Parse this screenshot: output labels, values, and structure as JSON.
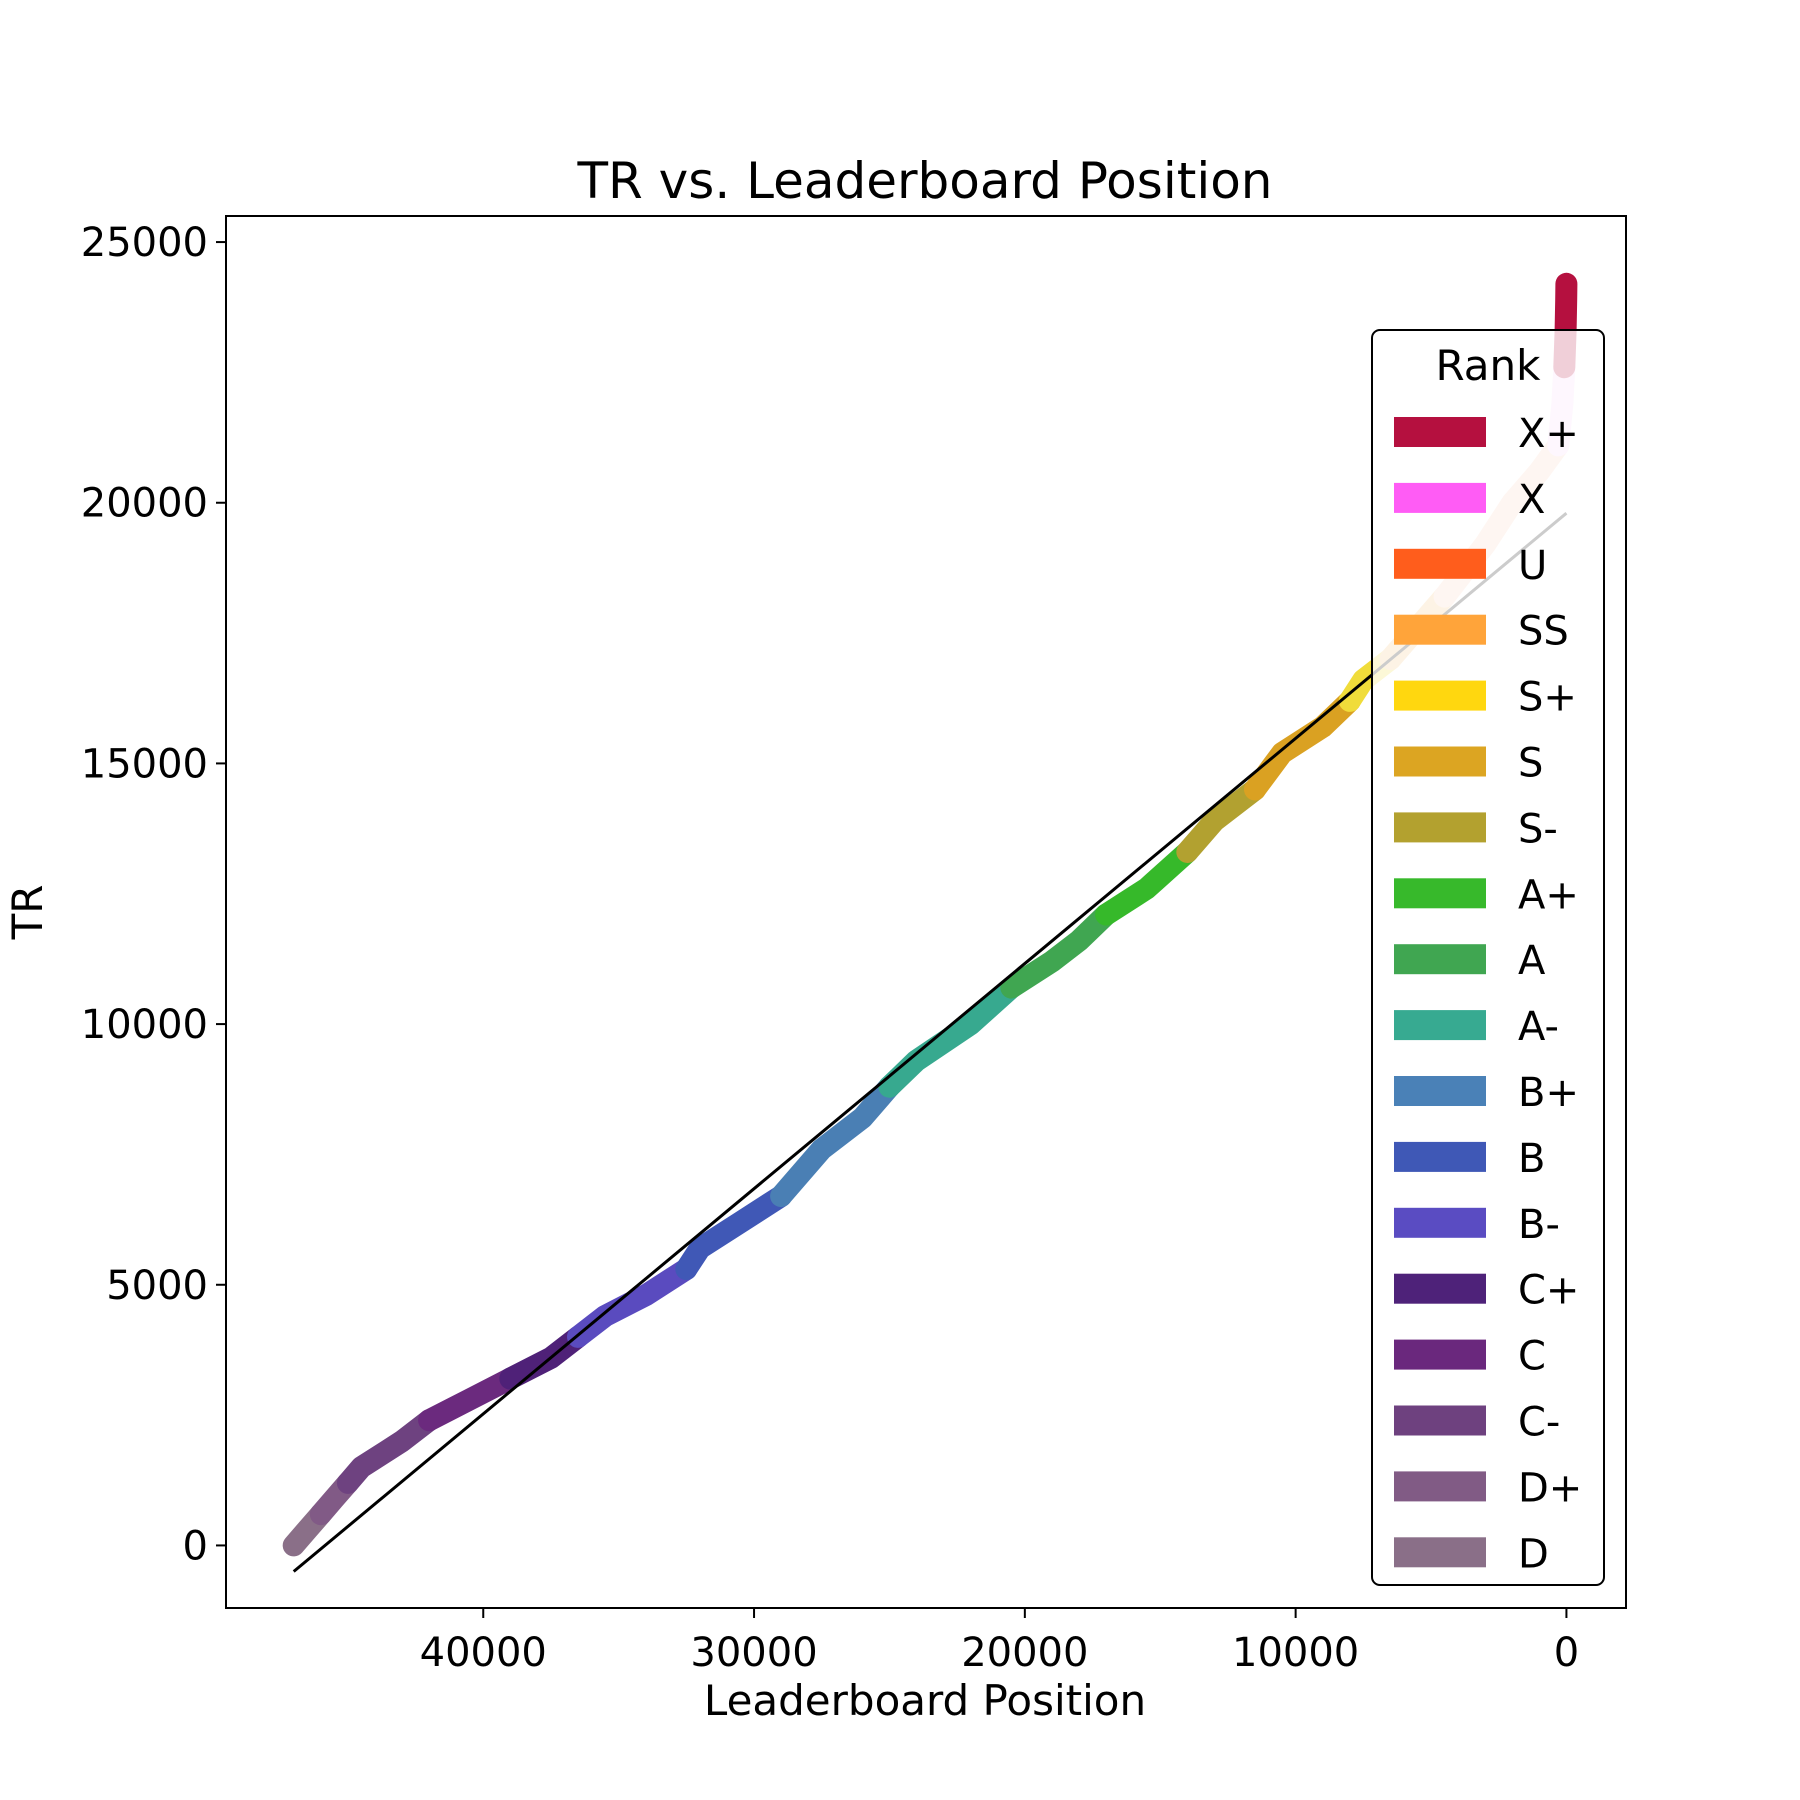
{
  "chart_data": {
    "type": "line",
    "title": "TR vs. Leaderboard Position",
    "xlabel": "Leaderboard Position",
    "ylabel": "TR",
    "xlim": [
      49500,
      -2200
    ],
    "ylim": [
      -1200,
      25500
    ],
    "x_ticks": [
      40000,
      30000,
      20000,
      10000,
      0
    ],
    "y_ticks": [
      0,
      5000,
      10000,
      15000,
      20000,
      25000
    ],
    "grid": false,
    "legend": {
      "title": "Rank",
      "placement": "right"
    },
    "series": [
      {
        "name": "D",
        "color": "#8a6f88",
        "points": [
          [
            47000,
            0
          ],
          [
            46500,
            300
          ],
          [
            46000,
            600
          ]
        ]
      },
      {
        "name": "D+",
        "color": "#815a86",
        "points": [
          [
            46000,
            600
          ],
          [
            45500,
            900
          ],
          [
            45000,
            1200
          ]
        ]
      },
      {
        "name": "C-",
        "color": "#6e4280",
        "points": [
          [
            45000,
            1200
          ],
          [
            44500,
            1500
          ],
          [
            43000,
            2000
          ],
          [
            42000,
            2400
          ]
        ]
      },
      {
        "name": "C",
        "color": "#6b2a7e",
        "points": [
          [
            42000,
            2400
          ],
          [
            40500,
            2800
          ],
          [
            39000,
            3200
          ]
        ]
      },
      {
        "name": "C+",
        "color": "#4f2178",
        "points": [
          [
            39000,
            3200
          ],
          [
            37500,
            3600
          ],
          [
            36500,
            4000
          ]
        ]
      },
      {
        "name": "B-",
        "color": "#5a4bbf",
        "points": [
          [
            36500,
            4000
          ],
          [
            35500,
            4400
          ],
          [
            34000,
            4800
          ],
          [
            32500,
            5300
          ]
        ]
      },
      {
        "name": "B",
        "color": "#4058b6",
        "points": [
          [
            32500,
            5300
          ],
          [
            32000,
            5700
          ],
          [
            30500,
            6200
          ],
          [
            29000,
            6700
          ]
        ]
      },
      {
        "name": "B+",
        "color": "#4a7fb4",
        "points": [
          [
            29000,
            6700
          ],
          [
            27500,
            7600
          ],
          [
            26000,
            8200
          ],
          [
            25000,
            8800
          ]
        ]
      },
      {
        "name": "A-",
        "color": "#37a98f",
        "points": [
          [
            25000,
            8800
          ],
          [
            24000,
            9300
          ],
          [
            22000,
            10000
          ],
          [
            20500,
            10700
          ]
        ]
      },
      {
        "name": "A",
        "color": "#40a651",
        "points": [
          [
            20500,
            10700
          ],
          [
            19000,
            11200
          ],
          [
            18000,
            11600
          ],
          [
            17000,
            12100
          ]
        ]
      },
      {
        "name": "A+",
        "color": "#36b92a",
        "points": [
          [
            17000,
            12100
          ],
          [
            15500,
            12600
          ],
          [
            14000,
            13300
          ]
        ]
      },
      {
        "name": "S-",
        "color": "#b2a130",
        "points": [
          [
            14000,
            13300
          ],
          [
            13000,
            13900
          ],
          [
            11500,
            14500
          ]
        ]
      },
      {
        "name": "S",
        "color": "#daa122",
        "points": [
          [
            11500,
            14500
          ],
          [
            10500,
            15200
          ],
          [
            9000,
            15700
          ],
          [
            8000,
            16200
          ]
        ]
      },
      {
        "name": "S+",
        "color": "#f0dc3a",
        "points": [
          [
            8000,
            16200
          ],
          [
            7500,
            16600
          ],
          [
            6500,
            17000
          ]
        ]
      },
      {
        "name": "SS",
        "color": "#f6c47e",
        "points": [
          [
            6500,
            17000
          ],
          [
            5500,
            17600
          ],
          [
            4500,
            18200
          ]
        ]
      },
      {
        "name": "U",
        "color": "#fbd2bd",
        "points": [
          [
            4500,
            18200
          ],
          [
            3000,
            19200
          ],
          [
            2000,
            20000
          ],
          [
            1000,
            20600
          ],
          [
            300,
            21100
          ]
        ]
      },
      {
        "name": "X",
        "color": "#fbd8f7",
        "points": [
          [
            300,
            21100
          ],
          [
            150,
            21900
          ],
          [
            80,
            22600
          ]
        ]
      },
      {
        "name": "X+",
        "color": "#b5103f",
        "points": [
          [
            80,
            22600
          ],
          [
            30,
            23300
          ],
          [
            10,
            23900
          ],
          [
            0,
            24200
          ]
        ]
      }
    ],
    "trendline": {
      "color": "#000000",
      "points": [
        [
          47000,
          -500
        ],
        [
          0,
          19800
        ]
      ]
    },
    "legend_entries": [
      {
        "label": "X+",
        "color": "#b5103f"
      },
      {
        "label": "X",
        "color": "#ff5cf5"
      },
      {
        "label": "U",
        "color": "#ff5d1c"
      },
      {
        "label": "SS",
        "color": "#ffa43a"
      },
      {
        "label": "S+",
        "color": "#ffd70f"
      },
      {
        "label": "S",
        "color": "#dca522"
      },
      {
        "label": "S-",
        "color": "#b3a12f"
      },
      {
        "label": "A+",
        "color": "#37b92b"
      },
      {
        "label": "A",
        "color": "#40a651"
      },
      {
        "label": "A-",
        "color": "#37aa91"
      },
      {
        "label": "B+",
        "color": "#4a81b7"
      },
      {
        "label": "B",
        "color": "#3f58b6"
      },
      {
        "label": "B-",
        "color": "#5a4cc2"
      },
      {
        "label": "C+",
        "color": "#4e2279"
      },
      {
        "label": "C",
        "color": "#6a287d"
      },
      {
        "label": "C-",
        "color": "#6e417f"
      },
      {
        "label": "D+",
        "color": "#815b85"
      },
      {
        "label": "D",
        "color": "#8a6f88"
      }
    ]
  }
}
